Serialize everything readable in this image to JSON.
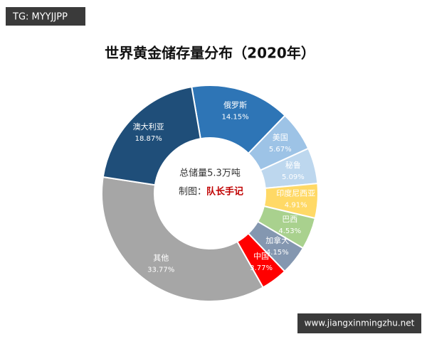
{
  "chart_data": {
    "type": "donut",
    "title": "世界黄金储存量分布（2020年）",
    "categories": [
      "俄罗斯",
      "美国",
      "秘鲁",
      "印度尼西亚",
      "巴西",
      "加拿大",
      "中国",
      "其他",
      "澳大利亚"
    ],
    "values": [
      14.15,
      5.67,
      5.09,
      4.91,
      4.53,
      4.15,
      3.77,
      33.77,
      18.87
    ],
    "value_labels": [
      "14.15%",
      "5.67%",
      "5.09%",
      "4.91%",
      "4.53%",
      "4.15%",
      "3.77%",
      "33.77%",
      "18.87%"
    ],
    "colors": [
      "#2e75b6",
      "#9dc3e6",
      "#bdd7ee",
      "#ffd966",
      "#a9d18e",
      "#8497b0",
      "#ff0000",
      "#a6a6a6",
      "#1f4e79"
    ],
    "center_text": "总储量5.3万吨",
    "credit_label": "制图：",
    "credit_name": "队长手记"
  },
  "watermarks": {
    "top_left": "TG: MYYJJPP",
    "bottom_right": "www.jiangxinmingzhu.net"
  }
}
